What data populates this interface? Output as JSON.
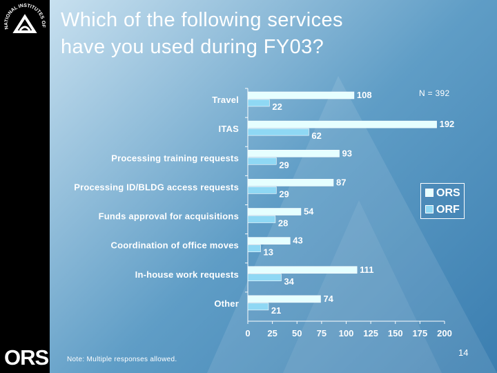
{
  "slide": {
    "title_line1": "Which of the following services",
    "title_line2": "have you used during FY03?",
    "note": "Note:  Multiple responses allowed.",
    "page_number": "14",
    "logo_text": "ORS",
    "seal_text": "NATIONAL INSTITUTES OF HEALTH"
  },
  "colors": {
    "ors_bar": "#e6ffff",
    "orf_bar": "#8fd8f4",
    "text": "#ffffff",
    "sidebar": "#000000"
  },
  "chart_data": {
    "type": "bar",
    "orientation": "horizontal",
    "annotation": "N = 392",
    "categories": [
      "Travel",
      "ITAS",
      "Processing training requests",
      "Processing ID/BLDG access requests",
      "Funds approval for acquisitions",
      "Coordination of office moves",
      "In-house work requests",
      "Other"
    ],
    "series": [
      {
        "name": "ORS",
        "values": [
          108,
          192,
          93,
          87,
          54,
          43,
          111,
          74
        ]
      },
      {
        "name": "ORF",
        "values": [
          22,
          62,
          29,
          29,
          28,
          13,
          34,
          21
        ]
      }
    ],
    "xlim": [
      0,
      200
    ],
    "xticks": [
      "0",
      "25",
      "50",
      "75",
      "100",
      "125",
      "150",
      "175",
      "200"
    ],
    "legend_position": "right",
    "grid": false
  }
}
